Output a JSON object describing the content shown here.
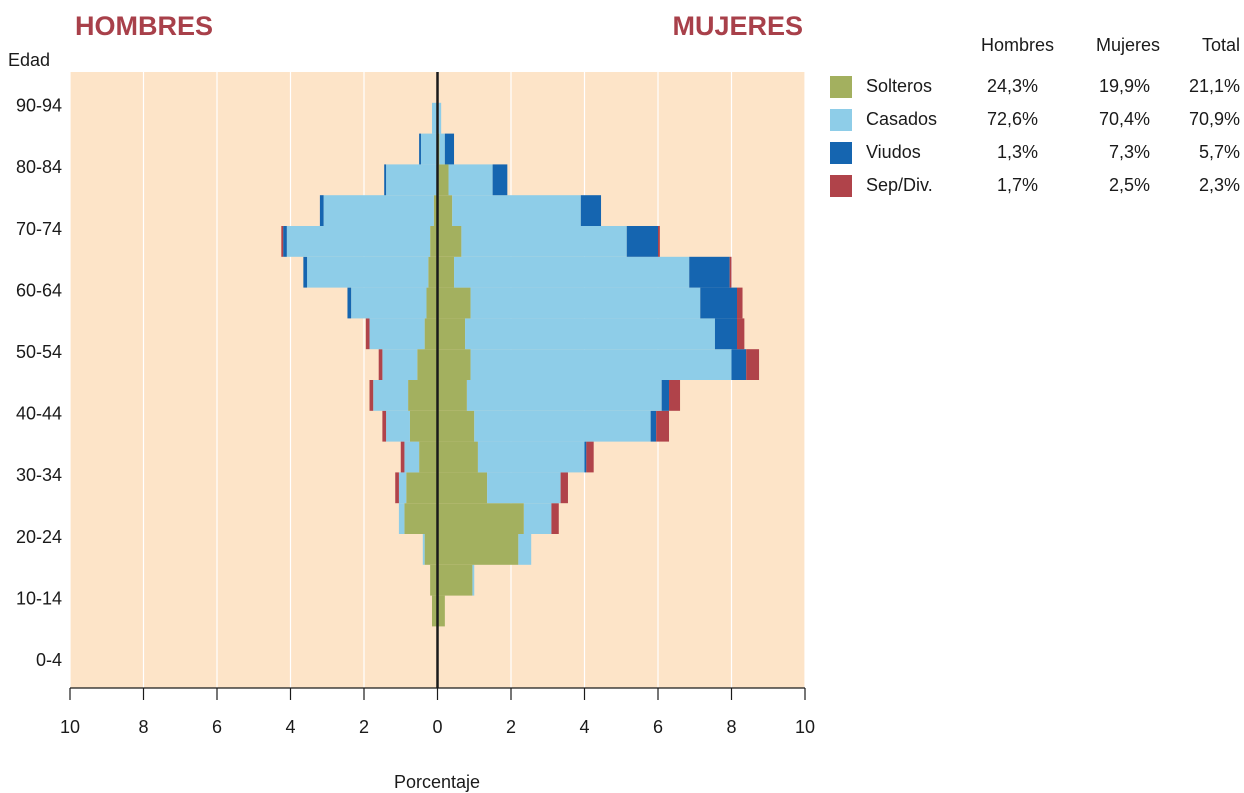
{
  "chart_data": {
    "type": "pyramid",
    "left_title": "HOMBRES",
    "right_title": "MUJERES",
    "y_label": "Edad",
    "x_label": "Porcentaje",
    "background": "#fde4c8",
    "grid": true,
    "categories": [
      "0-4",
      null,
      "10-14",
      null,
      "20-24",
      null,
      "30-34",
      null,
      "40-44",
      null,
      "50-54",
      null,
      "60-64",
      null,
      "70-74",
      null,
      "80-84",
      null,
      "90-94"
    ],
    "xlim": [
      -10,
      10
    ],
    "xticks": [
      {
        "value": -10,
        "label": "10"
      },
      {
        "value": -8,
        "label": "8"
      },
      {
        "value": -6,
        "label": "6"
      },
      {
        "value": -4,
        "label": "4"
      },
      {
        "value": -2,
        "label": "2"
      },
      0,
      2,
      4,
      6,
      8,
      10
    ],
    "share_columns": [
      "Hombres",
      "Mujeres",
      "Total"
    ],
    "series": [
      {
        "name": "Solteros",
        "color": "#a3b05f",
        "men": [
          0,
          0,
          0.15,
          0.2,
          0.35,
          0.9,
          0.85,
          0.5,
          0.75,
          0.8,
          0.55,
          0.35,
          0.3,
          0.25,
          0.2,
          0.1,
          0,
          0,
          0
        ],
        "women": [
          0,
          0,
          0.2,
          0.95,
          2.2,
          2.35,
          1.35,
          1.1,
          1.0,
          0.8,
          0.9,
          0.75,
          0.9,
          0.45,
          0.65,
          0.4,
          0.3,
          0.05,
          0
        ],
        "shares": [
          24.3,
          19.9,
          21.1
        ],
        "share_labels": [
          "24,3%",
          "19,9%",
          "21,1%"
        ]
      },
      {
        "name": "Casados",
        "color": "#8ecde8",
        "men": [
          0,
          0,
          0,
          0,
          0.05,
          0.15,
          0.2,
          0.4,
          0.65,
          0.95,
          0.95,
          1.5,
          2.05,
          3.3,
          3.9,
          3.0,
          1.4,
          0.45,
          0.15
        ],
        "women": [
          0,
          0,
          0,
          0.05,
          0.35,
          0.75,
          2.0,
          2.9,
          4.8,
          5.3,
          7.1,
          6.8,
          6.25,
          6.4,
          4.5,
          3.5,
          1.2,
          0.15,
          0.1
        ],
        "shares": [
          72.6,
          70.4,
          70.9
        ],
        "share_labels": [
          "72,6%",
          "70,4%",
          "70,9%"
        ]
      },
      {
        "name": "Viudos",
        "color": "#1565b0",
        "men": [
          0,
          0,
          0,
          0,
          0,
          0,
          0,
          0,
          0,
          0,
          0,
          0,
          0.1,
          0.1,
          0.1,
          0.1,
          0.05,
          0.05,
          0
        ],
        "women": [
          0,
          0,
          0,
          0,
          0,
          0,
          0,
          0.05,
          0.15,
          0.2,
          0.4,
          0.6,
          1.0,
          1.1,
          0.85,
          0.55,
          0.4,
          0.25,
          0
        ],
        "shares": [
          1.3,
          7.3,
          5.7
        ],
        "share_labels": [
          "1,3%",
          "7,3%",
          "5,7%"
        ]
      },
      {
        "name": "Sep/Div.",
        "color": "#b0434a",
        "men": [
          0,
          0,
          0,
          0,
          0,
          0,
          0.1,
          0.1,
          0.1,
          0.1,
          0.1,
          0.1,
          0,
          0,
          0.05,
          0,
          0,
          0,
          0
        ],
        "women": [
          0,
          0,
          0,
          0,
          0,
          0.2,
          0.2,
          0.2,
          0.35,
          0.3,
          0.35,
          0.2,
          0.15,
          0.05,
          0.05,
          0,
          0,
          0,
          0
        ],
        "shares": [
          1.7,
          2.5,
          2.3
        ],
        "share_labels": [
          "1,7%",
          "2,5%",
          "2,3%"
        ]
      }
    ]
  }
}
